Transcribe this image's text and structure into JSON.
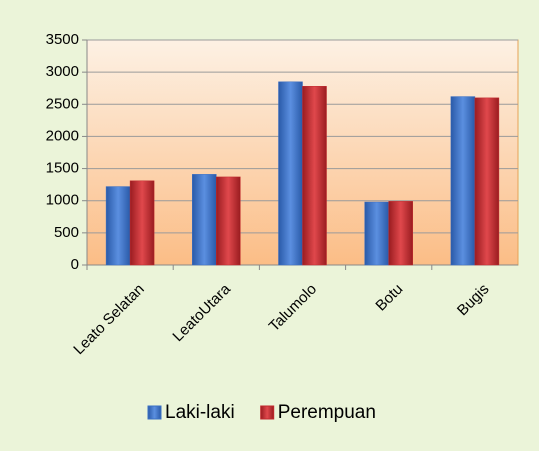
{
  "chart_data": {
    "type": "bar",
    "categories": [
      "Leato Selatan",
      "LeatoUtara",
      "Talumolo",
      "Botu",
      "Bugis"
    ],
    "series": [
      {
        "name": "Laki-laki",
        "color": "#3a6fc4",
        "values": [
          1220,
          1410,
          2850,
          980,
          2620
        ]
      },
      {
        "name": "Perempuan",
        "color": "#c0282d",
        "values": [
          1310,
          1370,
          2780,
          990,
          2600
        ]
      }
    ],
    "ylim": [
      0,
      3500
    ],
    "yticks": [
      0,
      500,
      1000,
      1500,
      2000,
      2500,
      3000,
      3500
    ],
    "grid": true,
    "legend": "bottom"
  }
}
